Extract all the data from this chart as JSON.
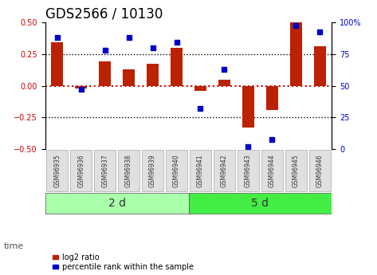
{
  "title": "GDS2566 / 10130",
  "samples": [
    "GSM96935",
    "GSM96936",
    "GSM96937",
    "GSM96938",
    "GSM96939",
    "GSM96940",
    "GSM96941",
    "GSM96942",
    "GSM96943",
    "GSM96944",
    "GSM96945",
    "GSM96946"
  ],
  "log2_ratio": [
    0.34,
    -0.02,
    0.19,
    0.13,
    0.17,
    0.3,
    -0.04,
    0.05,
    -0.33,
    -0.19,
    0.5,
    0.31
  ],
  "percentile_rank": [
    88,
    47,
    78,
    88,
    80,
    84,
    32,
    63,
    2,
    8,
    97,
    92
  ],
  "groups": [
    {
      "label": "2 d",
      "start": 0,
      "end": 6,
      "color": "#aaffaa"
    },
    {
      "label": "5 d",
      "start": 6,
      "end": 12,
      "color": "#44ee44"
    }
  ],
  "bar_color": "#bb2200",
  "dot_color": "#0000cc",
  "ylim_left": [
    -0.5,
    0.5
  ],
  "ylim_right": [
    0,
    100
  ],
  "yticks_left": [
    -0.5,
    -0.25,
    0.0,
    0.25,
    0.5
  ],
  "yticks_right": [
    0,
    25,
    50,
    75,
    100
  ],
  "dotted_lines": [
    0.25,
    0.0,
    -0.25
  ],
  "legend_bar_label": "log2 ratio",
  "legend_dot_label": "percentile rank within the sample",
  "time_label": "time",
  "background_color": "#ffffff",
  "title_fontsize": 12,
  "tick_fontsize": 7,
  "label_fontsize": 8,
  "group_label_fontsize": 10
}
